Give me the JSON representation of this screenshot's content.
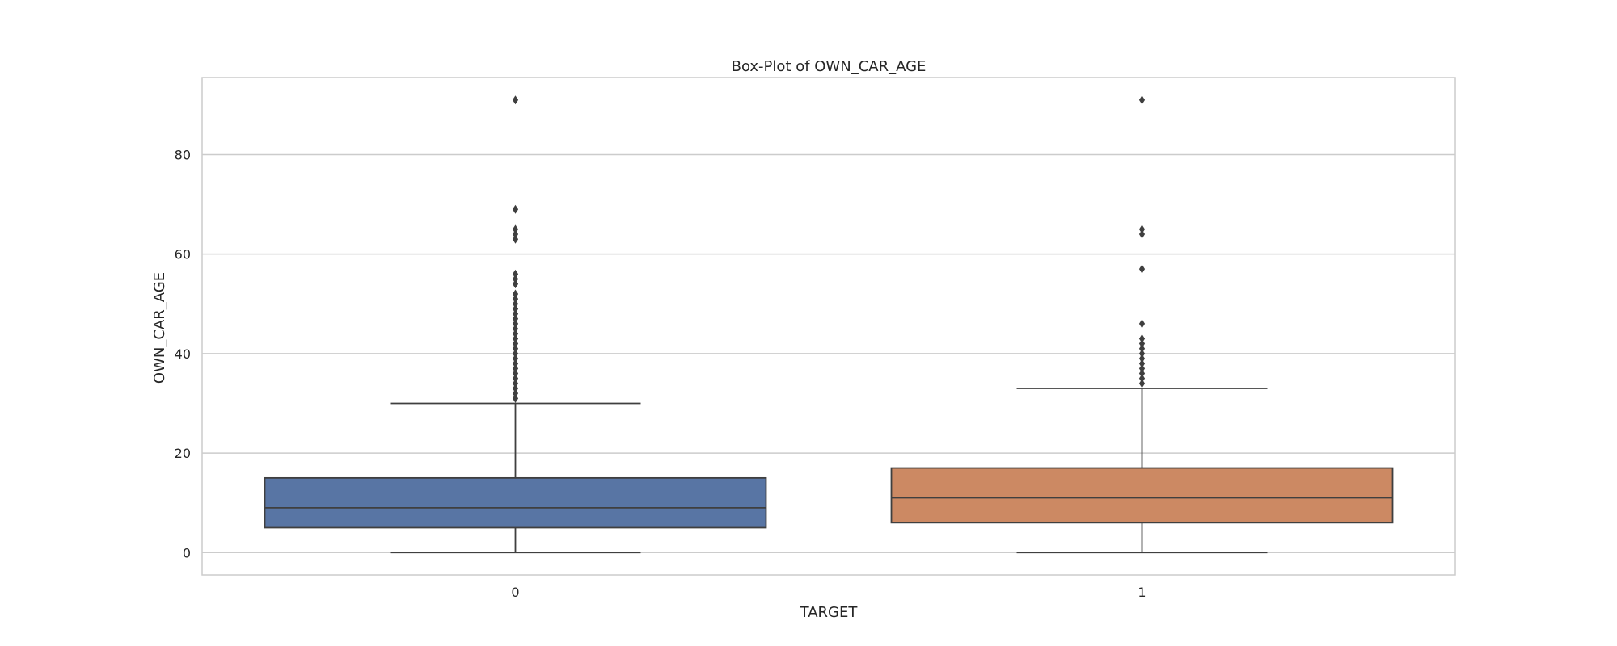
{
  "chart_data": {
    "type": "box",
    "title": "Box-Plot of OWN_CAR_AGE",
    "xlabel": "TARGET",
    "ylabel": "OWN_CAR_AGE",
    "categories": [
      "0",
      "1"
    ],
    "ylim": [
      -4.5,
      95.5
    ],
    "yticks": [
      0,
      20,
      40,
      60,
      80
    ],
    "grid": true,
    "boxes": [
      {
        "category": "0",
        "color": "#5875a4",
        "whisker_low": 0,
        "q1": 5,
        "median": 9,
        "q3": 15,
        "whisker_high": 30,
        "outliers": [
          31,
          32,
          33,
          34,
          35,
          36,
          37,
          38,
          39,
          40,
          41,
          42,
          43,
          44,
          45,
          46,
          47,
          48,
          49,
          50,
          51,
          52,
          54,
          55,
          56,
          63,
          64,
          65,
          69,
          91
        ]
      },
      {
        "category": "1",
        "color": "#cc8963",
        "whisker_low": 0,
        "q1": 6,
        "median": 11,
        "q3": 17,
        "whisker_high": 33,
        "outliers": [
          34,
          35,
          36,
          37,
          38,
          39,
          40,
          41,
          42,
          43,
          46,
          57,
          64,
          65,
          91
        ]
      }
    ]
  }
}
